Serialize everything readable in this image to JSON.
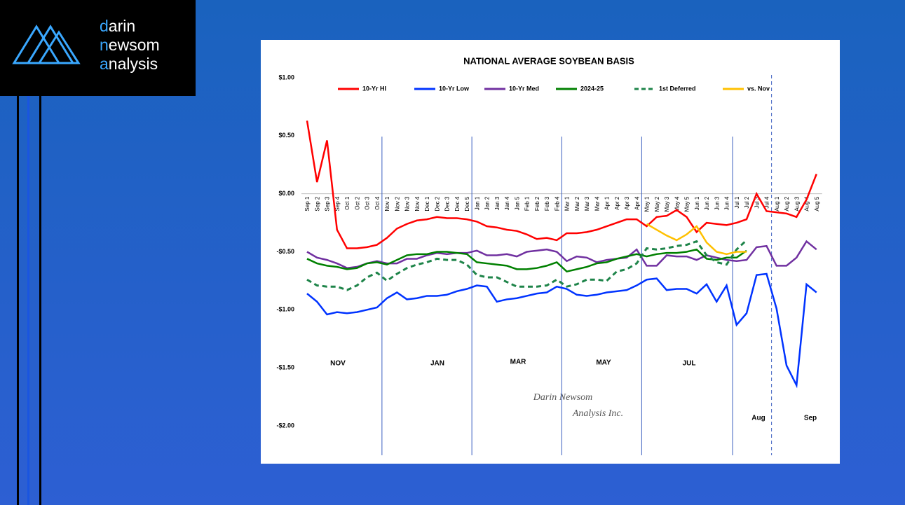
{
  "logo": [
    "darin",
    "newsom",
    "analysis"
  ],
  "chart_data": {
    "type": "line",
    "title": "NATIONAL AVERAGE SOYBEAN BASIS",
    "categories": [
      "Sep 1",
      "Sep 2",
      "Sep 3",
      "Sep 4",
      "Oct 1",
      "Oct 2",
      "Oct 3",
      "Oct 4",
      "Nov 1",
      "Nov 2",
      "Nov 3",
      "Nov 4",
      "Dec 1",
      "Dec 2",
      "Dec 3",
      "Dec 4",
      "Dec 5",
      "Jan 1",
      "Jan 2",
      "Jan 3",
      "Jan 4",
      "Jan 5",
      "Feb 1",
      "Feb 2",
      "Feb 3",
      "Feb 4",
      "Mar 1",
      "Mar 2",
      "Mar 3",
      "Mar 4",
      "Apr 1",
      "Apr 2",
      "Apr 3",
      "Apr 4",
      "May 1",
      "May 2",
      "May 3",
      "May 4",
      "May 5",
      "Jun 1",
      "Jun 2",
      "Jun 3",
      "Jun 4",
      "Jul 1",
      "Jul 2",
      "Jul 3",
      "Jul 4",
      "Aug 1",
      "Aug 2",
      "Aug 3",
      "Aug 4",
      "Aug 5"
    ],
    "ylim": [
      -2,
      1
    ],
    "yticks": [
      {
        "value": -2,
        "label": "-$2.00"
      },
      {
        "value": -1.5,
        "label": "-$1.50"
      },
      {
        "value": -1,
        "label": "-$1.00"
      },
      {
        "value": -0.5,
        "label": "-$0.50"
      },
      {
        "value": 0,
        "label": "$0.00"
      },
      {
        "value": 0.5,
        "label": "$0.50"
      },
      {
        "value": 1,
        "label": "$1.00"
      }
    ],
    "legend": "top",
    "series": [
      {
        "name": "10-Yr HI",
        "color": "#ff0000",
        "dash": false,
        "values": [
          0.63,
          0.1,
          0.46,
          -0.31,
          -0.47,
          -0.47,
          -0.46,
          -0.44,
          -0.38,
          -0.3,
          -0.26,
          -0.23,
          -0.22,
          -0.2,
          -0.21,
          -0.21,
          -0.22,
          -0.24,
          -0.28,
          -0.29,
          -0.31,
          -0.32,
          -0.35,
          -0.39,
          -0.38,
          -0.4,
          -0.34,
          -0.34,
          -0.33,
          -0.31,
          -0.28,
          -0.25,
          -0.22,
          -0.22,
          -0.28,
          -0.2,
          -0.19,
          -0.14,
          -0.2,
          -0.33,
          -0.25,
          -0.26,
          -0.27,
          -0.25,
          -0.22,
          0.0,
          -0.15,
          -0.16,
          -0.17,
          -0.2,
          -0.05,
          0.17
        ]
      },
      {
        "name": "10-Yr Low",
        "color": "#0033ff",
        "dash": false,
        "values": [
          -0.86,
          -0.93,
          -1.04,
          -1.02,
          -1.03,
          -1.02,
          -1.0,
          -0.98,
          -0.9,
          -0.85,
          -0.91,
          -0.9,
          -0.88,
          -0.88,
          -0.87,
          -0.84,
          -0.82,
          -0.79,
          -0.8,
          -0.93,
          -0.91,
          -0.9,
          -0.88,
          -0.86,
          -0.85,
          -0.8,
          -0.82,
          -0.87,
          -0.88,
          -0.87,
          -0.85,
          -0.84,
          -0.83,
          -0.79,
          -0.74,
          -0.73,
          -0.83,
          -0.82,
          -0.82,
          -0.86,
          -0.78,
          -0.93,
          -0.79,
          -1.13,
          -1.03,
          -0.7,
          -0.69,
          -0.99,
          -1.48,
          -1.65,
          -0.78,
          -0.85
        ]
      },
      {
        "name": "10-Yr Med",
        "color": "#7030a0",
        "dash": false,
        "values": [
          -0.5,
          -0.55,
          -0.57,
          -0.6,
          -0.64,
          -0.63,
          -0.6,
          -0.58,
          -0.6,
          -0.6,
          -0.56,
          -0.56,
          -0.53,
          -0.51,
          -0.52,
          -0.51,
          -0.51,
          -0.49,
          -0.53,
          -0.53,
          -0.52,
          -0.54,
          -0.5,
          -0.49,
          -0.48,
          -0.5,
          -0.58,
          -0.54,
          -0.55,
          -0.59,
          -0.57,
          -0.56,
          -0.55,
          -0.48,
          -0.62,
          -0.62,
          -0.53,
          -0.54,
          -0.54,
          -0.57,
          -0.53,
          -0.55,
          -0.57,
          -0.58,
          -0.57,
          -0.46,
          -0.45,
          -0.62,
          -0.62,
          -0.55,
          -0.41,
          -0.48
        ]
      },
      {
        "name": "2024-25",
        "color": "#008000",
        "dash": false,
        "values": [
          -0.56,
          -0.6,
          -0.62,
          -0.63,
          -0.65,
          -0.64,
          -0.6,
          -0.59,
          -0.61,
          -0.57,
          -0.53,
          -0.52,
          -0.52,
          -0.5,
          -0.5,
          -0.51,
          -0.52,
          -0.59,
          -0.6,
          -0.61,
          -0.62,
          -0.65,
          -0.65,
          -0.64,
          -0.62,
          -0.59,
          -0.67,
          -0.65,
          -0.63,
          -0.6,
          -0.59,
          -0.56,
          -0.54,
          -0.52,
          -0.54,
          -0.52,
          -0.51,
          -0.51,
          -0.5,
          -0.48,
          -0.56,
          -0.57,
          -0.55,
          -0.55,
          -0.49,
          null,
          null,
          null,
          null,
          null,
          null,
          null
        ]
      },
      {
        "name": "1st Deferred",
        "color": "#1e8449",
        "dash": true,
        "values": [
          -0.74,
          -0.79,
          -0.8,
          -0.8,
          -0.83,
          -0.79,
          -0.72,
          -0.68,
          -0.75,
          -0.69,
          -0.64,
          -0.61,
          -0.59,
          -0.56,
          -0.57,
          -0.57,
          -0.61,
          -0.7,
          -0.72,
          -0.72,
          -0.76,
          -0.8,
          -0.8,
          -0.8,
          -0.79,
          -0.74,
          -0.8,
          -0.78,
          -0.74,
          -0.74,
          -0.75,
          -0.67,
          -0.65,
          -0.6,
          -0.47,
          -0.48,
          -0.47,
          -0.45,
          -0.44,
          -0.41,
          -0.53,
          -0.59,
          -0.61,
          -0.48,
          -0.4,
          null,
          null,
          null,
          null,
          null,
          null,
          null
        ]
      },
      {
        "name": "vs. Nov",
        "color": "#ffc000",
        "dash": false,
        "values": [
          null,
          null,
          null,
          null,
          null,
          null,
          null,
          null,
          null,
          null,
          null,
          null,
          null,
          null,
          null,
          null,
          null,
          null,
          null,
          null,
          null,
          null,
          null,
          null,
          null,
          null,
          null,
          null,
          null,
          null,
          null,
          null,
          null,
          null,
          -0.26,
          -0.31,
          -0.36,
          -0.4,
          -0.35,
          -0.28,
          -0.42,
          -0.5,
          -0.52,
          -0.5,
          -0.5,
          null,
          null,
          null,
          null,
          null,
          null,
          null
        ]
      }
    ],
    "period_labels": [
      "NOV",
      "JAN",
      "MAR",
      "MAY",
      "JUL",
      "Aug",
      "Sep"
    ],
    "watermark": [
      "Darin Newsom",
      "Analysis Inc."
    ]
  }
}
